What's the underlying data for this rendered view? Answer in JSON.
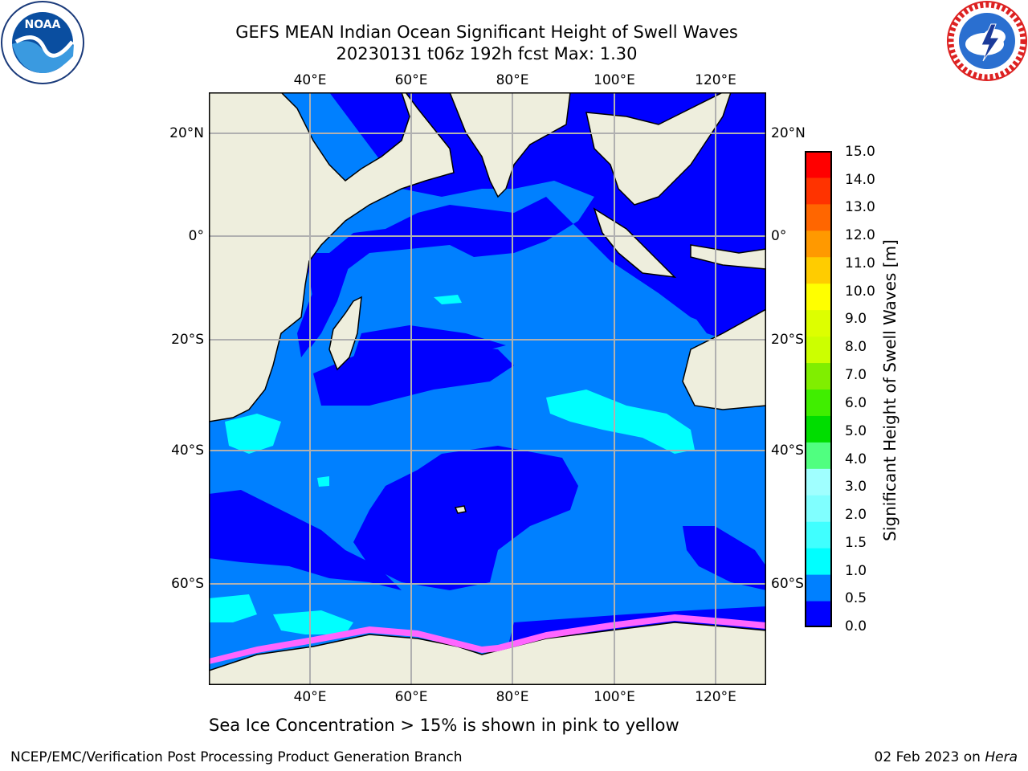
{
  "title": {
    "line1": "GEFS MEAN Indian Ocean Significant Height of Swell Waves",
    "line2": "20230131 t06z 192h fcst   Max: 1.30"
  },
  "logos": {
    "left": {
      "icon": "noaa-logo",
      "text": "NOAA",
      "ring": "NATIONAL OCEANIC AND ATMOSPHERIC ADMINISTRATION · U.S. DEPARTMENT OF COMMERCE"
    },
    "right": {
      "icon": "nws-logo",
      "ring": "NATIONAL WEATHER SERVICE"
    }
  },
  "map": {
    "lon_ticks": [
      "40°E",
      "60°E",
      "80°E",
      "100°E",
      "120°E"
    ],
    "lat_ticks_left": [
      "20°N",
      "0°",
      "20°S",
      "40°S",
      "60°S"
    ],
    "lat_ticks_right": [
      "20°N",
      "0°",
      "20°S",
      "40°S",
      "60°S"
    ],
    "colors": {
      "land": "#eeeedd",
      "ocean_0_05": "#0000ff",
      "ocean_05_10": "#0080ff",
      "ocean_10_15": "#00ffff",
      "sea_ice": "#ff66ff",
      "grid": "#b0b0b0"
    }
  },
  "colorbar": {
    "title": "Significant Height of Swell Waves [m]",
    "ticks": [
      "0.0",
      "0.5",
      "1.0",
      "1.5",
      "2.0",
      "3.0",
      "4.0",
      "5.0",
      "6.0",
      "7.0",
      "8.0",
      "9.0",
      "10.0",
      "11.0",
      "12.0",
      "13.0",
      "14.0",
      "15.0"
    ],
    "colors": [
      "#0000ff",
      "#0080ff",
      "#00ffff",
      "#40ffff",
      "#80ffff",
      "#a0ffff",
      "#50ff80",
      "#00dd00",
      "#40ee00",
      "#80ee00",
      "#ccff00",
      "#ddff00",
      "#ffff00",
      "#ffcc00",
      "#ff9900",
      "#ff6600",
      "#ff3300",
      "#ff0000"
    ]
  },
  "footer": {
    "note": "Sea Ice Concentration > 15% is shown in pink to yellow",
    "credit_left": "NCEP/EMC/Verification Post Processing Product Generation Branch",
    "credit_right_date": "02 Feb 2023 on ",
    "credit_right_host": "Hera"
  }
}
